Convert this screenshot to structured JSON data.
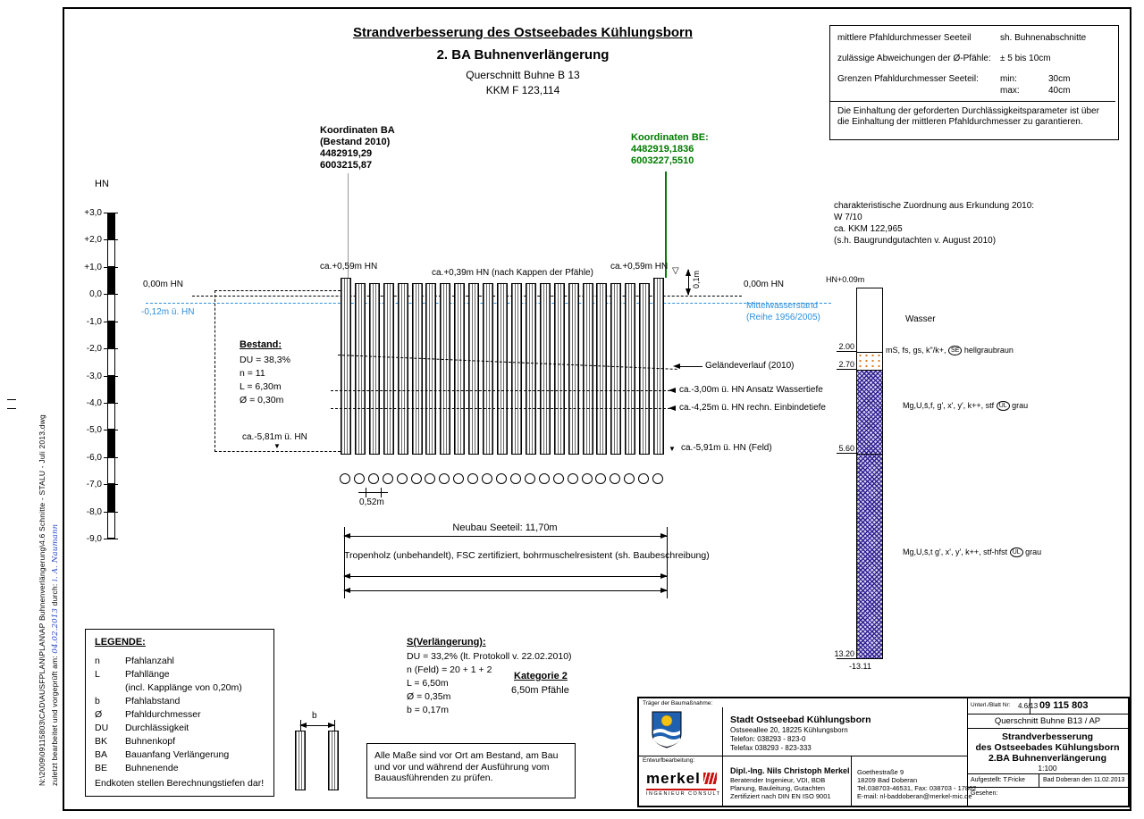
{
  "colors": {
    "green": "#007a00",
    "blue": "#2b8fdd",
    "clay": "#2d1f8f",
    "sand_dot": "#e07818",
    "merkel_red": "#cc1111"
  },
  "margin": {
    "file_path": "N:\\2009\\09115803\\CAD\\AUSFPLAN\\PLAN\\AP Buhnenverlängerung\\4.6 Schnitte - STALU - Juli 2013.dwg",
    "edit_prefix": "zuletzt bearbeitet und vorgeprüft am:",
    "edit_date": "04.02.2013",
    "edit_mid": "durch:",
    "edit_sig": "i. A. Naumann"
  },
  "header": {
    "line1": "Strandverbesserung des Ostseebades Kühlungsborn",
    "line2": "2. BA Buhnenverlängerung",
    "line3": "Querschnitt Buhne B 13",
    "line4": "KKM F 123,114"
  },
  "spec_box": {
    "row1_label": "mittlere Pfahldurchmesser Seeteil",
    "row1_value": "sh. Buhnenabschnitte",
    "row2_label": "zulässige Abweichungen der Ø-Pfähle:",
    "row2_value": "± 5 bis 10cm",
    "row3_label": "Grenzen Pfahldurchmesser Seeteil:",
    "row3_min_label": "min:",
    "row3_min_value": "30cm",
    "row3_max_label": "max:",
    "row3_max_value": "40cm",
    "note": "Die Einhaltung der geforderten Durchlässigkeitsparameter ist über die Einhaltung der mittleren Pfahldurchmesser zu garantieren."
  },
  "coords_ba": {
    "title": "Koordinaten BA",
    "subtitle": "(Bestand 2010)",
    "east": "4482919,29",
    "north": "6003215,87"
  },
  "coords_be": {
    "title": "Koordinaten BE:",
    "east": "4482919,1836",
    "north": "6003227,5510"
  },
  "erkundung": {
    "line1": "charakteristische Zuordnung aus Erkundung 2010:",
    "line2": "W 7/10",
    "line3": "ca. KKM 122,965",
    "line4": "(s.h. Baugrundgutachten v. August 2010)"
  },
  "scale": {
    "axis_label": "HN",
    "ticks": [
      "+3,0",
      "+2,0",
      "+1,0",
      "0,0",
      "-1,0",
      "-2,0",
      "-3,0",
      "-4,0",
      "-5,0",
      "-6,0",
      "-7,0",
      "-8,0",
      "-9,0"
    ]
  },
  "section": {
    "pile_count": 23,
    "circle_count": 23,
    "top_left": "ca.+0,59m HN",
    "top_mid": "ca.+0,39m HN (nach Kappen der Pfähle)",
    "top_right": "ca.+0,59m HN",
    "zero_left": "0,00m HN",
    "zero_right": "0,00m HN",
    "mwl_left": "-0,12m ü. HN",
    "mwl_right1": "Mittelwasserstand",
    "mwl_right2": "(Reihe 1956/2005)",
    "cap_dim": "0,1m",
    "water_symbol": "▽",
    "bestand_title": "Bestand:",
    "bestand_du": "DU = 38,3%",
    "bestand_n": "n = 11",
    "bestand_l": "L = 6,30m",
    "bestand_d": "Ø = 0,30m",
    "gelaende": "Geländeverlauf (2010)",
    "wassertiefe": "ca.-3,00m ü. HN Ansatz Wassertiefe",
    "einbindetiefe": "ca.-4,25m ü. HN rechn. Einbindetiefe",
    "depth_left": "ca.-5,81m ü. HN",
    "depth_right": "ca.-5,91m ü. HN (Feld)",
    "marker": "▼",
    "spacing_dim": "0,52m",
    "neubau_dim": "Neubau Seeteil: 11,70m",
    "material": "Tropenholz (unbehandelt), FSC zertifiziert, bohrmuschelresistent (sh. Baubeschreibung)"
  },
  "borehole": {
    "top_label": "HN+0.09m",
    "water_label": "Wasser",
    "d1": "2.00",
    "d2": "2.70",
    "d3": "5.60",
    "d4": "13.20",
    "d5": "-13.11",
    "layer1_pre": "mS, fs, gs, k\"/k+,",
    "layer1_circ": "SE",
    "layer1_post": "hellgraubraun",
    "layer2_pre": "Mg,U,s̄,f, g', x', y', k++, stf",
    "layer2_circ": "UL",
    "layer2_post": "grau",
    "layer3_pre": "Mg,U,s̄,t g', x', y', k++, stf-hfst",
    "layer3_circ": "UL",
    "layer3_post": "grau"
  },
  "legend": {
    "title": "LEGENDE:",
    "rows": [
      {
        "sym": "n",
        "desc": "Pfahlanzahl"
      },
      {
        "sym": "L",
        "desc": "Pfahllänge"
      },
      {
        "sym": "",
        "desc": "(incl. Kapplänge von 0,20m)"
      },
      {
        "sym": "b",
        "desc": "Pfahlabstand"
      },
      {
        "sym": "Ø",
        "desc": "Pfahldurchmesser"
      },
      {
        "sym": "DU",
        "desc": "Durchlässigkeit"
      },
      {
        "sym": "BK",
        "desc": "Buhnenkopf"
      },
      {
        "sym": "BA",
        "desc": "Bauanfang Verlängerung"
      },
      {
        "sym": "BE",
        "desc": "Buhnenende"
      }
    ],
    "footer": "Endkoten stellen Berechnungstiefen dar!"
  },
  "verlaengerung": {
    "title": "S(Verlängerung):",
    "du": "DU = 33,2% (lt. Protokoll v. 22.02.2010)",
    "n": "n (Feld) = 20 + 1 + 2",
    "l": "L = 6,50m",
    "d": "Ø = 0,35m",
    "b": "b = 0,17m",
    "kategorie": "Kategorie 2",
    "kategorie_sub": "6,50m Pfähle",
    "detail_dim": "b"
  },
  "note_box": {
    "text": "Alle Maße sind vor Ort am Bestand, am Bau und vor und während der Ausführung vom Bauausführenden zu prüfen."
  },
  "titleblock": {
    "client_label": "Träger der Baumaßnahme:",
    "client_name": "Stadt Ostseebad Kühlungsborn",
    "client_addr": "Ostseeallee 20, 18225 Kühlungsborn",
    "client_tel": "Telefon: 038293 - 823-0",
    "client_fax": "Telefax 038293 - 823-333",
    "design_label": "Entwurfbearbeitung:",
    "logo_text": "merkel",
    "logo_sub": "INGENIEUR CONSULT",
    "firm_name": "Dipl.-Ing. Nils Christoph Merkel",
    "firm_line1": "Beratender Ingenieur, VDI, BDB",
    "firm_line2": "Planung, Bauleitung, Gutachten",
    "firm_line3": "Zertifiziert nach DIN EN ISO 9001",
    "firm_addr1": "Goethestraße 9",
    "firm_addr2": "18209 Bad Doberan",
    "firm_addr3": "Tel.038703-46531, Fax: 038703 - 17862",
    "firm_addr4": "E-mail: nl-baddoberan@merkel-mic.de",
    "sheet_label": "Unterl./Blatt Nr:",
    "sheet_no": "4.6/13",
    "project_no": "09 115 803",
    "drawing_title": "Querschnitt Buhne B13 / AP",
    "project_line1": "Strandverbesserung",
    "project_line2": "des Ostseebades Kühlungsborn",
    "project_line3": "2.BA Buhnenverlängerung",
    "scale_value": "1:100",
    "prepared": "Aufgestellt: T.Fricke",
    "place_date": "Bad Doberan den 11.02.2013",
    "seen": "Gesehen:"
  }
}
